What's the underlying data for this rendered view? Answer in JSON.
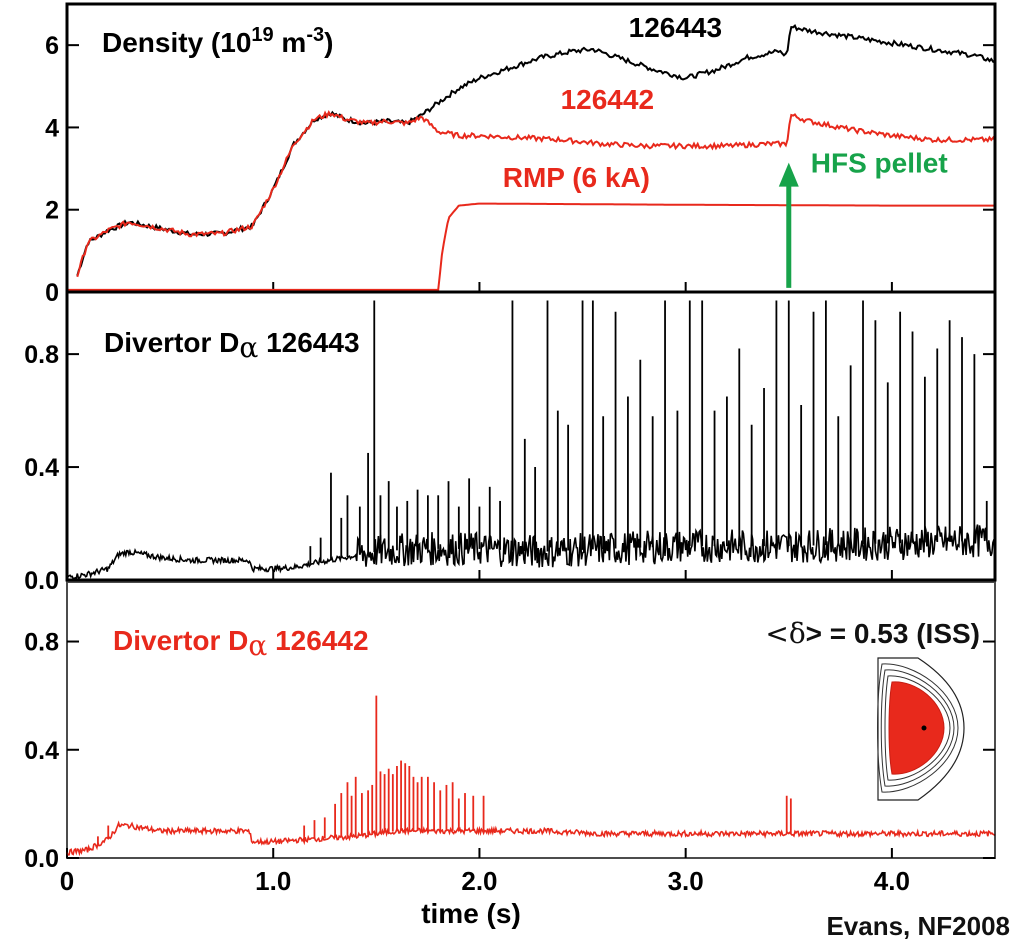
{
  "chart_data": {
    "type": "line",
    "xlabel": "time (s)",
    "xlim": [
      0,
      4.5
    ],
    "x_ticks": [
      "0",
      "1.0",
      "2.0",
      "3.0",
      "4.0"
    ],
    "credit": "Evans, NF2008",
    "colors": {
      "black_series": "#000000",
      "red_series": "#e8291c",
      "arrow": "#17a34a"
    },
    "panels": [
      {
        "id": "density",
        "title_main": "Density  (10",
        "title_sup1": "19",
        "title_mid": " m",
        "title_sup2": "-3",
        "title_end": ")",
        "ylim": [
          0,
          7
        ],
        "y_ticks": [
          0,
          2,
          4,
          6
        ],
        "y_tick_labels": [
          "0",
          "2",
          "4",
          "6"
        ],
        "series": [
          {
            "name": "126443",
            "color": "#000000",
            "x": [
              0.05,
              0.1,
              0.2,
              0.3,
              0.45,
              0.6,
              0.75,
              0.9,
              1.0,
              1.1,
              1.2,
              1.28,
              1.35,
              1.45,
              1.55,
              1.65,
              1.72,
              1.8,
              1.9,
              2.0,
              2.15,
              2.3,
              2.45,
              2.55,
              2.7,
              2.85,
              3.0,
              3.15,
              3.3,
              3.45,
              3.49,
              3.51,
              3.6,
              3.8,
              4.0,
              4.2,
              4.4,
              4.5
            ],
            "y": [
              0.4,
              1.2,
              1.5,
              1.7,
              1.55,
              1.4,
              1.42,
              1.6,
              2.5,
              3.6,
              4.2,
              4.35,
              4.2,
              4.1,
              4.15,
              4.1,
              4.3,
              4.6,
              4.95,
              5.2,
              5.45,
              5.7,
              5.85,
              5.9,
              5.65,
              5.4,
              5.2,
              5.4,
              5.7,
              5.85,
              5.75,
              6.45,
              6.35,
              6.2,
              6.05,
              5.9,
              5.75,
              5.6
            ]
          },
          {
            "name": "126442",
            "color": "#e8291c",
            "x": [
              0.05,
              0.1,
              0.2,
              0.3,
              0.45,
              0.6,
              0.75,
              0.9,
              1.0,
              1.1,
              1.2,
              1.28,
              1.35,
              1.45,
              1.55,
              1.65,
              1.72,
              1.8,
              1.9,
              2.0,
              2.2,
              2.4,
              2.6,
              2.8,
              3.0,
              3.2,
              3.4,
              3.49,
              3.51,
              3.6,
              3.8,
              4.0,
              4.2,
              4.4,
              4.5
            ],
            "y": [
              0.4,
              1.2,
              1.5,
              1.7,
              1.55,
              1.4,
              1.42,
              1.6,
              2.5,
              3.6,
              4.2,
              4.35,
              4.2,
              4.1,
              4.15,
              4.1,
              4.25,
              3.9,
              3.8,
              3.8,
              3.75,
              3.7,
              3.6,
              3.55,
              3.55,
              3.55,
              3.6,
              3.6,
              4.3,
              4.15,
              3.95,
              3.8,
              3.7,
              3.7,
              3.7
            ]
          },
          {
            "name": "RMP (6 kA)",
            "color": "#e8291c",
            "x": [
              0,
              1.8,
              1.82,
              1.85,
              1.9,
              2.0,
              3.0,
              4.0,
              4.5
            ],
            "y": [
              0.05,
              0.05,
              1.0,
              1.8,
              2.1,
              2.15,
              2.12,
              2.1,
              2.1
            ]
          }
        ],
        "labels": [
          {
            "text": "126443",
            "color": "#000000",
            "x": 2.95,
            "y": 6.2
          },
          {
            "text": "126442",
            "color": "#e8291c",
            "x": 2.62,
            "y": 4.45
          },
          {
            "text": "RMP (6 kA)",
            "color": "#e8291c",
            "x": 2.47,
            "y": 2.55
          }
        ],
        "annotation": {
          "text": "HFS pellet",
          "color": "#17a34a",
          "x": 3.5,
          "y_from": 0.1,
          "y_to": 3.0
        }
      },
      {
        "id": "dalpha_126443",
        "title_main": "Divertor D",
        "title_greek": "α",
        "title_shot": "  126443",
        "color": "#000000",
        "ylim": [
          0,
          1.02
        ],
        "y_ticks": [
          0.0,
          0.4,
          0.8
        ],
        "y_tick_labels": [
          "0.0",
          "0.4",
          "0.8"
        ],
        "baseline": {
          "x": [
            0,
            0.1,
            0.2,
            0.25,
            0.3,
            0.45,
            0.6,
            0.8,
            0.88,
            0.9,
            1.0,
            1.1,
            1.2,
            1.35,
            1.5,
            1.7,
            2.0,
            2.3,
            2.6,
            3.0,
            3.5,
            4.0,
            4.5
          ],
          "y": [
            0.01,
            0.02,
            0.04,
            0.09,
            0.1,
            0.08,
            0.07,
            0.07,
            0.07,
            0.04,
            0.04,
            0.045,
            0.06,
            0.08,
            0.1,
            0.11,
            0.11,
            0.1,
            0.11,
            0.12,
            0.12,
            0.13,
            0.14
          ]
        },
        "spikes": {
          "x": [
            1.18,
            1.23,
            1.28,
            1.33,
            1.36,
            1.42,
            1.46,
            1.49,
            1.52,
            1.56,
            1.6,
            1.65,
            1.7,
            1.75,
            1.8,
            1.85,
            1.9,
            1.95,
            2.0,
            2.05,
            2.1,
            2.16,
            2.22,
            2.27,
            2.33,
            2.38,
            2.43,
            2.5,
            2.55,
            2.6,
            2.66,
            2.72,
            2.78,
            2.84,
            2.9,
            2.96,
            3.02,
            3.08,
            3.14,
            3.2,
            3.26,
            3.32,
            3.38,
            3.44,
            3.5,
            3.56,
            3.62,
            3.68,
            3.74,
            3.8,
            3.86,
            3.92,
            3.98,
            4.04,
            4.1,
            4.16,
            4.22,
            4.28,
            4.34,
            4.4,
            4.46
          ],
          "y": [
            0.12,
            0.15,
            0.38,
            0.22,
            0.3,
            0.26,
            0.45,
            0.99,
            0.3,
            0.35,
            0.26,
            0.28,
            0.32,
            0.3,
            0.3,
            0.35,
            0.26,
            0.36,
            0.26,
            0.33,
            0.28,
            0.99,
            0.5,
            0.4,
            0.99,
            0.6,
            0.55,
            0.99,
            0.99,
            0.58,
            0.95,
            0.65,
            0.78,
            0.58,
            0.99,
            0.6,
            0.99,
            0.99,
            0.6,
            0.65,
            0.82,
            0.55,
            0.68,
            0.99,
            0.99,
            0.62,
            0.95,
            0.99,
            0.58,
            0.76,
            0.99,
            0.92,
            0.7,
            0.95,
            0.88,
            0.72,
            0.82,
            0.92,
            0.86,
            0.8,
            0.28
          ]
        }
      },
      {
        "id": "dalpha_126442",
        "title_main": "Divertor D",
        "title_greek": "α",
        "title_shot": "  126442",
        "color": "#e8291c",
        "ylim": [
          0,
          1.02
        ],
        "y_ticks": [
          0.0,
          0.4,
          0.8
        ],
        "y_tick_labels": [
          "0.0",
          "0.4",
          "0.8"
        ],
        "note_main": "<",
        "note_greek": "δ",
        "note_end": "> = 0.53 (ISS)",
        "baseline": {
          "x": [
            0,
            0.1,
            0.2,
            0.25,
            0.3,
            0.45,
            0.6,
            0.8,
            0.88,
            0.9,
            1.0,
            1.2,
            1.4,
            1.6,
            1.8,
            2.0,
            2.3,
            2.6,
            3.0,
            3.5,
            4.0,
            4.5
          ],
          "y": [
            0.02,
            0.03,
            0.07,
            0.12,
            0.12,
            0.1,
            0.1,
            0.1,
            0.1,
            0.06,
            0.06,
            0.07,
            0.08,
            0.1,
            0.1,
            0.1,
            0.1,
            0.09,
            0.09,
            0.09,
            0.09,
            0.09
          ]
        },
        "spikes": {
          "x": [
            0.15,
            0.2,
            1.15,
            1.2,
            1.25,
            1.3,
            1.33,
            1.36,
            1.38,
            1.4,
            1.43,
            1.46,
            1.48,
            1.5,
            1.52,
            1.54,
            1.56,
            1.58,
            1.6,
            1.62,
            1.64,
            1.66,
            1.68,
            1.7,
            1.72,
            1.75,
            1.78,
            1.81,
            1.84,
            1.87,
            1.9,
            1.93,
            1.97,
            2.02,
            3.49,
            3.51
          ],
          "y": [
            0.08,
            0.12,
            0.12,
            0.14,
            0.15,
            0.2,
            0.24,
            0.28,
            0.23,
            0.3,
            0.24,
            0.25,
            0.27,
            0.6,
            0.32,
            0.31,
            0.33,
            0.31,
            0.34,
            0.36,
            0.35,
            0.34,
            0.3,
            0.28,
            0.3,
            0.3,
            0.28,
            0.25,
            0.27,
            0.28,
            0.22,
            0.24,
            0.23,
            0.23,
            0.23,
            0.22
          ]
        },
        "inset": "plasma-cross-section"
      }
    ]
  }
}
